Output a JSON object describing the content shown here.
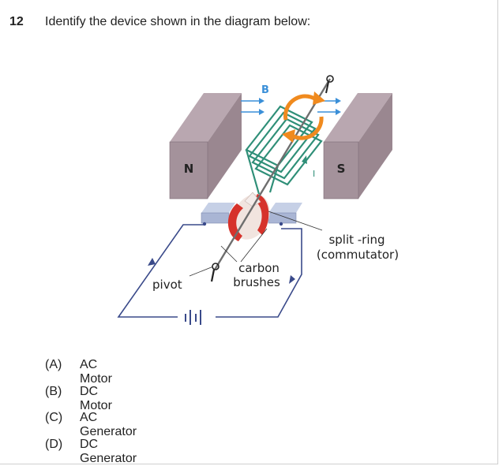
{
  "question": {
    "number": "12",
    "text": "Identify the device shown in the diagram below:"
  },
  "diagram": {
    "magnet_north_label": "N",
    "magnet_south_label": "S",
    "field_label": "B",
    "current_label": "I",
    "pivot_label": "pivot",
    "brushes_label_line1": "carbon",
    "brushes_label_line2": "brushes",
    "split_ring_label_line1": "split -ring",
    "split_ring_label_line2": "(commutator)"
  },
  "options": [
    {
      "letter": "(A)",
      "text": "AC Motor"
    },
    {
      "letter": "(B)",
      "text": "DC Motor"
    },
    {
      "letter": "(C)",
      "text": "AC Generator"
    },
    {
      "letter": "(D)",
      "text": "DC Generator"
    }
  ]
}
